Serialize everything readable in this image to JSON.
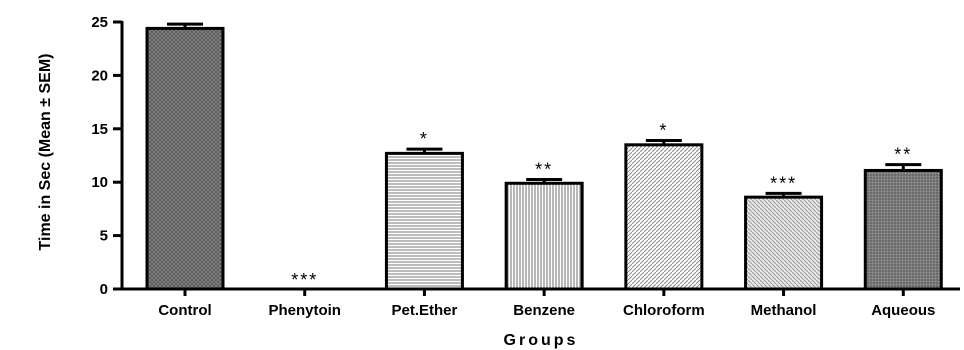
{
  "chart_data": {
    "type": "bar",
    "title": "",
    "xlabel": "Groups",
    "ylabel": "Time in Sec (Mean ± SEM)",
    "ylim": [
      0,
      25
    ],
    "yticks": [
      "0",
      "5",
      "10",
      "15",
      "20",
      "25"
    ],
    "categories": [
      "Control",
      "Phenytoin",
      "Pet.Ether",
      "Benzene",
      "Chloroform",
      "Methanol",
      "Aqueous"
    ],
    "values": [
      24.4,
      0,
      12.7,
      9.9,
      13.5,
      8.6,
      11.1
    ],
    "errors": [
      0.4,
      0,
      0.4,
      0.35,
      0.4,
      0.35,
      0.55
    ],
    "significance": [
      "",
      "***",
      "*",
      "**",
      "*",
      "***",
      "**"
    ],
    "grid": false,
    "legend": "none",
    "bar_patterns": [
      "crosshatch-dark",
      "none",
      "horizontal-lines",
      "vertical-lines",
      "diagonal-lines",
      "diagonal-lines-light",
      "crosshatch-grid"
    ]
  }
}
